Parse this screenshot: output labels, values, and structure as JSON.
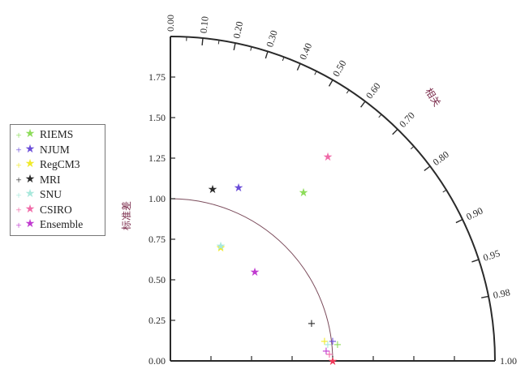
{
  "chart_data": {
    "type": "scatter",
    "subtype": "taylor-diagram",
    "y_axis_label": "标准差",
    "arc_label": "相关",
    "std_ticks": [
      "0.00",
      "0.25",
      "0.50",
      "0.75",
      "1.00",
      "1.25",
      "1.50",
      "1.75"
    ],
    "std_range": [
      0,
      2
    ],
    "reference_std": 1.0,
    "reference_marker": "*",
    "correlation_ticks": [
      {
        "value": 0.0,
        "label": "0.00"
      },
      {
        "value": 0.1,
        "label": "0.10"
      },
      {
        "value": 0.2,
        "label": "0.20"
      },
      {
        "value": 0.3,
        "label": "0.30"
      },
      {
        "value": 0.4,
        "label": "0.40"
      },
      {
        "value": 0.5,
        "label": "0.50"
      },
      {
        "value": 0.6,
        "label": "0.60"
      },
      {
        "value": 0.7,
        "label": "0.70"
      },
      {
        "value": 0.8,
        "label": "0.80"
      },
      {
        "value": 0.9,
        "label": "0.90"
      },
      {
        "value": 0.95,
        "label": "0.95"
      },
      {
        "value": 0.98,
        "label": "0.98"
      },
      {
        "value": 1.0,
        "label": "1.00"
      }
    ],
    "legend_position": "left",
    "series": [
      {
        "name": "RIEMS",
        "color": "#8ddc5a",
        "plus": {
          "x": 1.03,
          "y": 0.1
        },
        "star": {
          "x": 0.82,
          "y": 1.04
        }
      },
      {
        "name": "NJUM",
        "color": "#6a4cd8",
        "plus": {
          "x": 1.0,
          "y": 0.12
        },
        "star": {
          "x": 0.42,
          "y": 1.07
        }
      },
      {
        "name": "RegCM3",
        "color": "#f0ea2a",
        "plus": {
          "x": 0.95,
          "y": 0.12
        },
        "star": {
          "x": 0.31,
          "y": 0.7
        }
      },
      {
        "name": "MRI",
        "color": "#2a2a2a",
        "plus": {
          "x": 0.87,
          "y": 0.23
        },
        "star": {
          "x": 0.26,
          "y": 1.06
        }
      },
      {
        "name": "SNU",
        "color": "#a8e8dc",
        "plus": {
          "x": 0.97,
          "y": 0.1
        },
        "star": {
          "x": 0.31,
          "y": 0.71
        }
      },
      {
        "name": "CSIRO",
        "color": "#f06aa8",
        "plus": {
          "x": 0.98,
          "y": 0.04
        },
        "star": {
          "x": 0.97,
          "y": 1.26
        }
      },
      {
        "name": "Ensemble",
        "color": "#c03ad0",
        "plus": {
          "x": 0.96,
          "y": 0.06
        },
        "star": {
          "x": 0.52,
          "y": 0.55
        }
      }
    ]
  }
}
